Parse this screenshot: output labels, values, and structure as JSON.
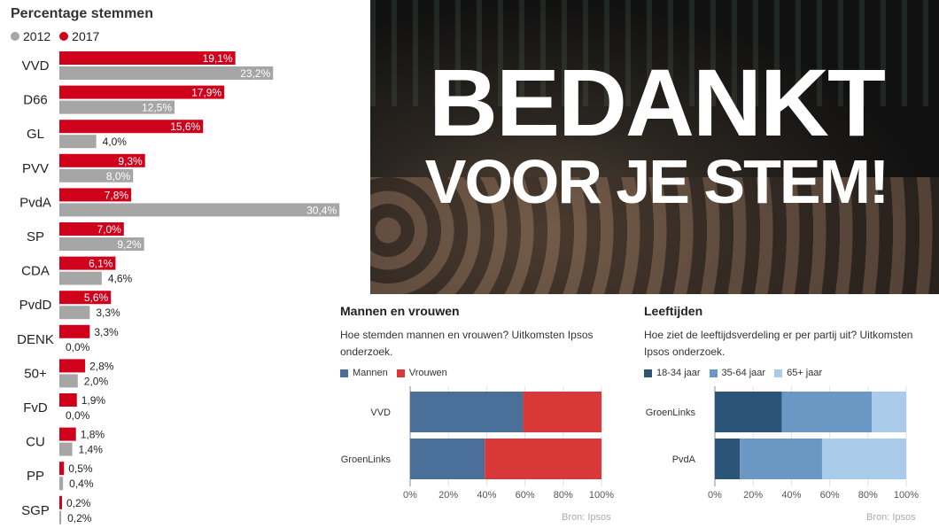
{
  "left": {
    "title": "Percentage stemmen",
    "legend": [
      {
        "label": "2012",
        "color": "#a6a6a6"
      },
      {
        "label": "2017",
        "color": "#d0021b"
      }
    ]
  },
  "photo": {
    "line1": "BEDANKT",
    "line2": "VOOR JE STEM!"
  },
  "gender": {
    "title": "Mannen en vrouwen",
    "desc_line1": "Hoe stemden mannen en vrouwen? Uitkomsten Ipsos",
    "desc_line2": "onderzoek.",
    "legend": [
      {
        "label": "Mannen",
        "color": "#4a709a"
      },
      {
        "label": "Vrouwen",
        "color": "#d93838"
      }
    ],
    "source": "Bron:  Ipsos"
  },
  "age": {
    "title": "Leeftijden",
    "desc_line1": "Hoe ziet de leeftijdsverdeling er per partij uit? Uitkomsten",
    "desc_line2": "Ipsos onderzoek.",
    "legend": [
      {
        "label": "18-34 jaar",
        "color": "#2c5478"
      },
      {
        "label": "35-64 jaar",
        "color": "#6a97c3"
      },
      {
        "label": "65+ jaar",
        "color": "#aacbea"
      }
    ],
    "source": "Bron:  Ipsos"
  },
  "chart_data": [
    {
      "type": "bar",
      "orientation": "horizontal",
      "title": "Percentage stemmen",
      "categories": [
        "VVD",
        "D66",
        "GL",
        "PVV",
        "PvdA",
        "SP",
        "CDA",
        "PvdD",
        "DENK",
        "50+",
        "FvD",
        "CU",
        "PP",
        "SGP"
      ],
      "series": [
        {
          "name": "2017",
          "values": [
            19.1,
            17.9,
            15.6,
            9.3,
            7.8,
            7.0,
            6.1,
            5.6,
            3.3,
            2.8,
            1.9,
            1.8,
            0.5,
            0.2
          ],
          "labels": [
            "19,1%",
            "17,9%",
            "15,6%",
            "9,3%",
            "7,8%",
            "7,0%",
            "6,1%",
            "5,6%",
            "3,3%",
            "2,8%",
            "1,9%",
            "1,8%",
            "0,5%",
            "0,2%"
          ]
        },
        {
          "name": "2012",
          "values": [
            23.2,
            12.5,
            4.0,
            8.0,
            30.4,
            9.2,
            4.6,
            3.3,
            0.0,
            2.0,
            0.0,
            1.4,
            0.4,
            0.2
          ],
          "labels": [
            "23,2%",
            "12,5%",
            "4,0%",
            "8,0%",
            "30,4%",
            "9,2%",
            "4,6%",
            "3,3%",
            "0,0%",
            "2,0%",
            "0,0%",
            "1,4%",
            "0,4%",
            "0,2%"
          ]
        }
      ]
    },
    {
      "type": "bar",
      "orientation": "horizontal",
      "stacked": true,
      "title": "Mannen en vrouwen",
      "categories": [
        "VVD",
        "GroenLinks"
      ],
      "series": [
        {
          "name": "Mannen",
          "values": [
            59,
            39
          ]
        },
        {
          "name": "Vrouwen",
          "values": [
            41,
            61
          ]
        }
      ],
      "xlim": [
        0,
        100
      ],
      "ticks": [
        "0%",
        "20%",
        "40%",
        "60%",
        "80%",
        "100%"
      ]
    },
    {
      "type": "bar",
      "orientation": "horizontal",
      "stacked": true,
      "title": "Leeftijden",
      "categories": [
        "GroenLinks",
        "PvdA"
      ],
      "series": [
        {
          "name": "18-34 jaar",
          "values": [
            35,
            13
          ]
        },
        {
          "name": "35-64 jaar",
          "values": [
            47,
            43
          ]
        },
        {
          "name": "65+ jaar",
          "values": [
            18,
            44
          ]
        }
      ],
      "xlim": [
        0,
        100
      ],
      "ticks": [
        "0%",
        "20%",
        "40%",
        "60%",
        "80%",
        "100%"
      ]
    }
  ]
}
